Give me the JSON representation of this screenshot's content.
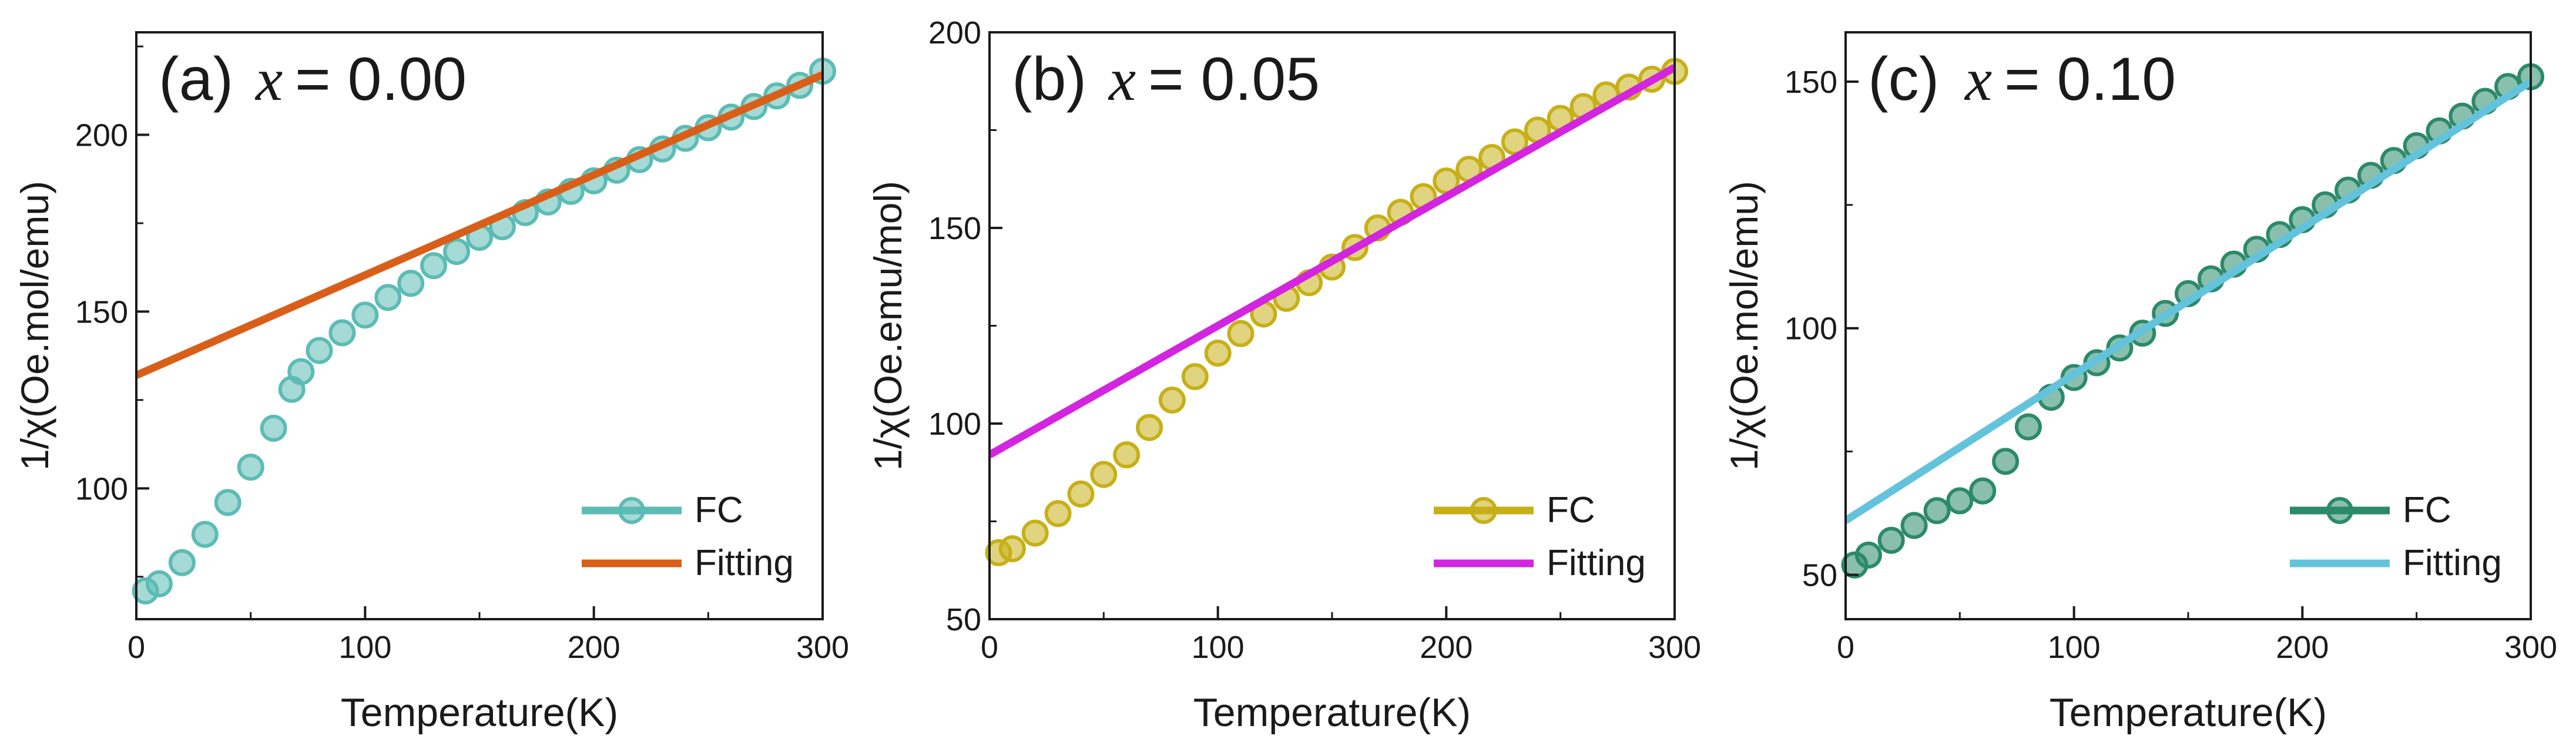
{
  "chart_data": [
    {
      "type": "line",
      "title_prefix": "(a)",
      "title_var": "x",
      "title_value": "= 0.00",
      "xlabel": "Temperature(K)",
      "ylabel": "1/χ(Oe.mol/emu)",
      "xlim": [
        0,
        300
      ],
      "ylim": [
        63,
        229
      ],
      "xticks": [
        0,
        100,
        200,
        300
      ],
      "yticks": [
        100,
        150,
        200
      ],
      "legend": "bottom-right",
      "series": [
        {
          "name": "FC",
          "kind": "markers",
          "color": "#5cbcb5",
          "x": [
            4,
            10,
            20,
            30,
            40,
            50,
            60,
            68,
            72,
            80,
            90,
            100,
            110,
            120,
            130,
            140,
            150,
            160,
            170,
            180,
            190,
            200,
            210,
            220,
            230,
            240,
            250,
            260,
            270,
            280,
            290,
            300
          ],
          "y": [
            71,
            73,
            79,
            87,
            96,
            106,
            117,
            128,
            133,
            139,
            144,
            149,
            154,
            158,
            163,
            167,
            171,
            174,
            178,
            181,
            184,
            187,
            190,
            193,
            196,
            199,
            202,
            205,
            208,
            211,
            214,
            218
          ]
        },
        {
          "name": "Fitting",
          "kind": "line",
          "color": "#d95f19",
          "x": [
            0,
            300
          ],
          "y": [
            132,
            217
          ]
        }
      ]
    },
    {
      "type": "line",
      "title_prefix": "(b)",
      "title_var": "x",
      "title_value": "= 0.05",
      "xlabel": "Temperature(K)",
      "ylabel": "1/χ(Oe.emu/mol)",
      "xlim": [
        0,
        300
      ],
      "ylim": [
        50,
        200
      ],
      "xticks": [
        0,
        100,
        200,
        300
      ],
      "yticks": [
        50,
        100,
        150,
        200
      ],
      "legend": "bottom-right",
      "series": [
        {
          "name": "FC",
          "kind": "markers",
          "color": "#c7b017",
          "x": [
            4,
            10,
            20,
            30,
            40,
            50,
            60,
            70,
            80,
            90,
            100,
            110,
            120,
            130,
            140,
            150,
            160,
            170,
            180,
            190,
            200,
            210,
            220,
            230,
            240,
            250,
            260,
            270,
            280,
            290,
            300
          ],
          "y": [
            67,
            68,
            72,
            77,
            82,
            87,
            92,
            99,
            106,
            112,
            118,
            123,
            128,
            132,
            136,
            140,
            145,
            150,
            154,
            158,
            162,
            165,
            168,
            172,
            175,
            178,
            181,
            184,
            186,
            188,
            190
          ]
        },
        {
          "name": "Fitting",
          "kind": "line",
          "color": "#d324e0",
          "x": [
            0,
            300
          ],
          "y": [
            92,
            191
          ]
        }
      ]
    },
    {
      "type": "line",
      "title_prefix": "(c)",
      "title_var": "x",
      "title_value": "= 0.10",
      "xlabel": "Temperature(K)",
      "ylabel": "1/χ(Oe.mol/emu)",
      "xlim": [
        0,
        300
      ],
      "ylim": [
        41,
        160
      ],
      "xticks": [
        0,
        100,
        200,
        300
      ],
      "yticks": [
        50,
        100,
        150
      ],
      "legend": "bottom-right",
      "series": [
        {
          "name": "FC",
          "kind": "markers",
          "color": "#2b8a6a",
          "x": [
            4,
            10,
            20,
            30,
            40,
            50,
            60,
            70,
            80,
            90,
            100,
            110,
            120,
            130,
            140,
            150,
            160,
            170,
            180,
            190,
            200,
            210,
            220,
            230,
            240,
            250,
            260,
            270,
            280,
            290,
            300
          ],
          "y": [
            52,
            54,
            57,
            60,
            63,
            65,
            67,
            73,
            80,
            86,
            90,
            93,
            96,
            99,
            103,
            107,
            110,
            113,
            116,
            119,
            122,
            125,
            128,
            131,
            134,
            137,
            140,
            143,
            146,
            149,
            151
          ]
        },
        {
          "name": "Fitting",
          "kind": "line",
          "color": "#63c3dc",
          "x": [
            0,
            300
          ],
          "y": [
            61,
            150
          ]
        }
      ]
    }
  ]
}
